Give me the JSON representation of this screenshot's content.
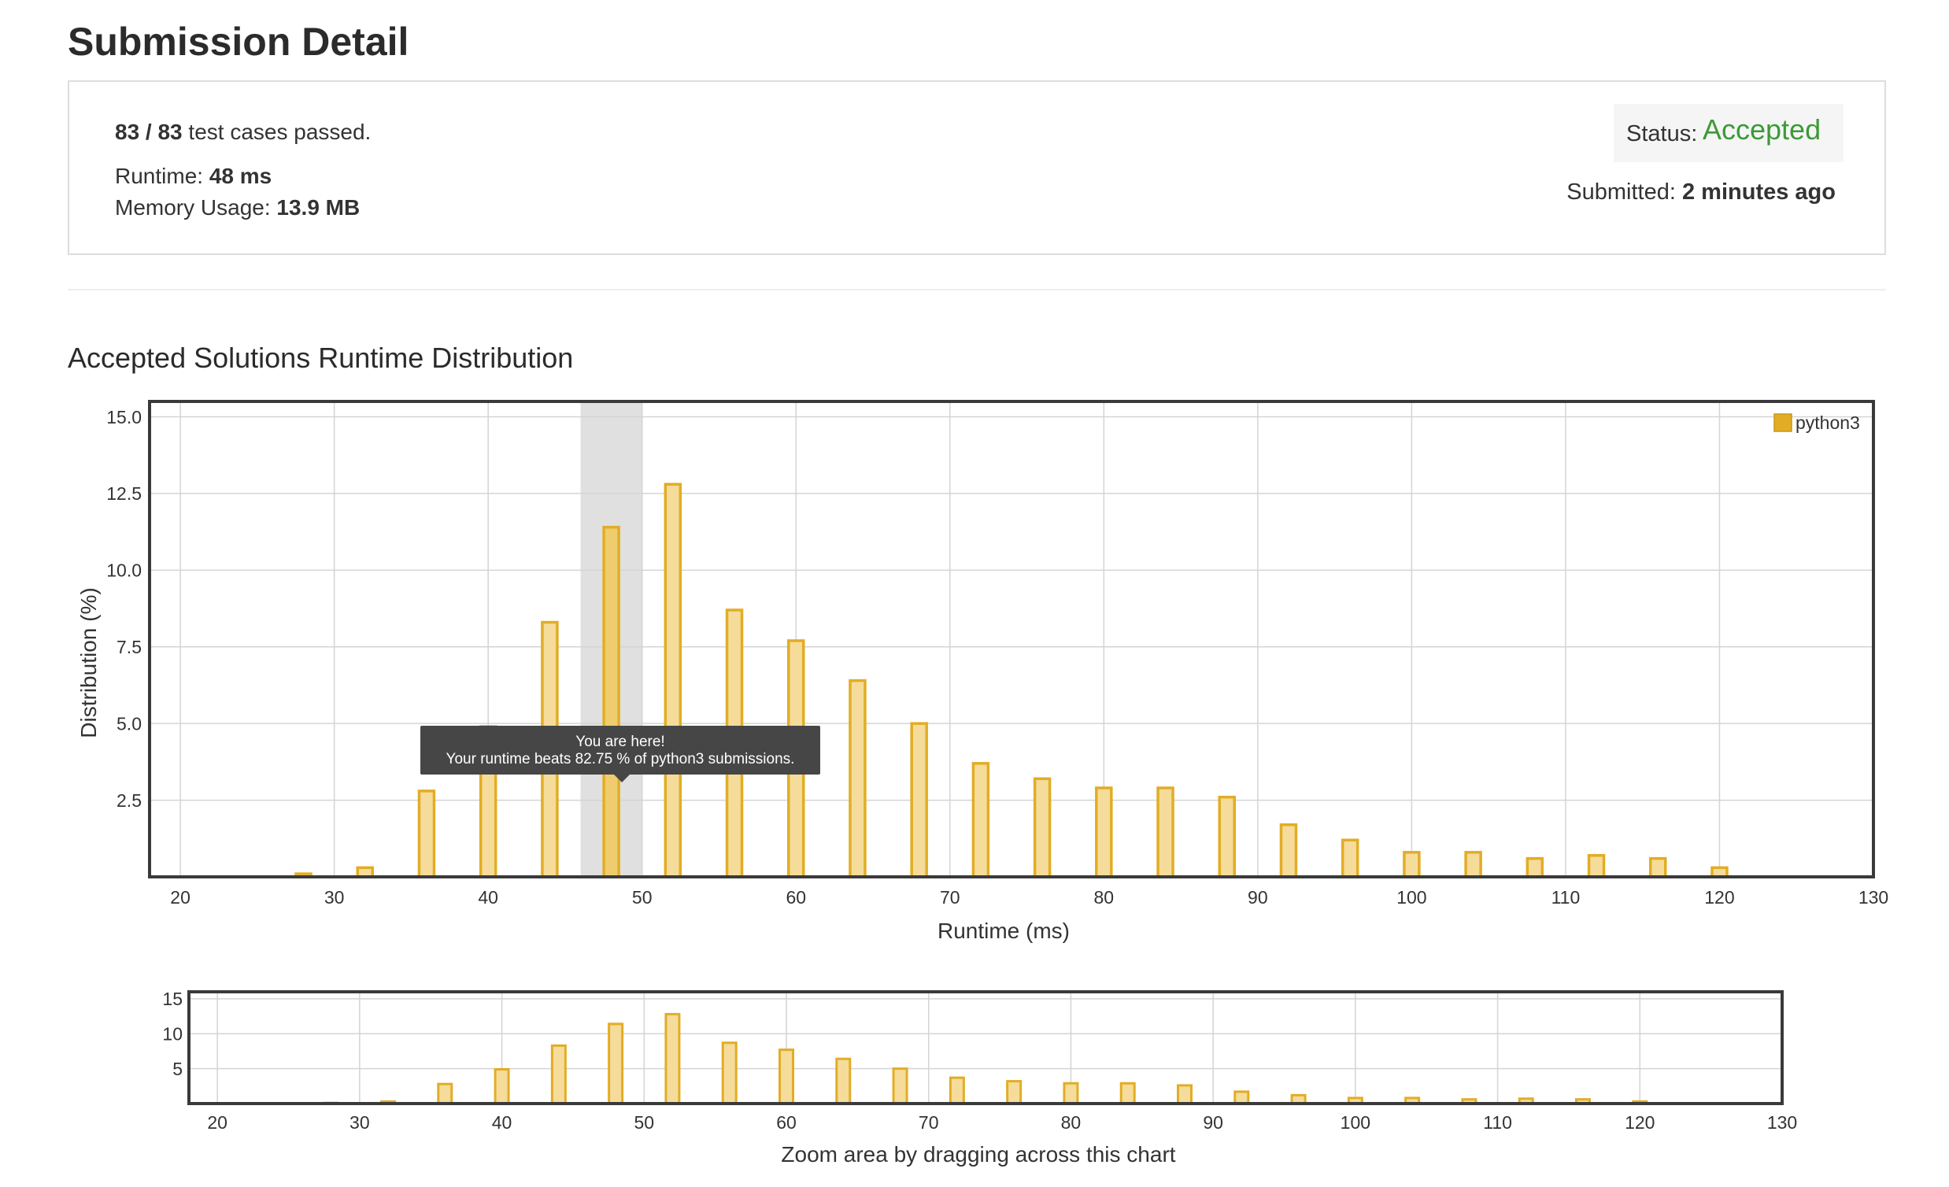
{
  "page": {
    "title": "Submission Detail",
    "tests_passed": "83 / 83",
    "tests_suffix": "test cases passed.",
    "runtime_label": "Runtime:",
    "runtime_value": "48 ms",
    "memory_label": "Memory Usage:",
    "memory_value": "13.9 MB",
    "status_label": "Status:",
    "status_value": "Accepted",
    "submitted_label": "Submitted:",
    "submitted_value": "2 minutes ago",
    "section_title": "Accepted Solutions Runtime Distribution",
    "tooltip_line1": "You are here!",
    "tooltip_line2": "Your runtime beats 82.75 % of python3 submissions.",
    "zoom_hint": "Zoom area by dragging across this chart"
  },
  "colors": {
    "bar_fill": "#f5dc9b",
    "bar_stroke": "#e2ad25",
    "highlight_fill": "#efcd6e",
    "highlight_band": "#e0e0e0",
    "accepted": "#3c9a37",
    "tooltip_bg": "#464646",
    "grid": "#d4d4d4",
    "frame": "#3a3a3a"
  },
  "chart_data": [
    {
      "type": "bar",
      "xlabel": "Runtime (ms)",
      "ylabel": "Distribution (%)",
      "xlim": [
        18,
        130
      ],
      "ylim": [
        0,
        15.5
      ],
      "xticks": [
        20,
        30,
        40,
        50,
        60,
        70,
        80,
        90,
        100,
        110,
        120,
        130
      ],
      "yticks": [
        2.5,
        5.0,
        7.5,
        10.0,
        12.5,
        15.0
      ],
      "ytick_labels": [
        "2.5",
        "5.0",
        "7.5",
        "10.0",
        "12.5",
        "15.0"
      ],
      "grid": true,
      "legend_position": "top-right",
      "highlight_band": [
        46,
        50
      ],
      "highlight_x": 48,
      "series": [
        {
          "name": "python3",
          "x": [
            28,
            32,
            36,
            40,
            44,
            48,
            52,
            56,
            60,
            64,
            68,
            72,
            76,
            80,
            84,
            88,
            92,
            96,
            100,
            104,
            108,
            112,
            116,
            120
          ],
          "values": [
            0.1,
            0.3,
            2.8,
            4.9,
            8.3,
            11.4,
            12.8,
            8.7,
            7.7,
            6.4,
            5.0,
            3.7,
            3.2,
            2.9,
            2.9,
            2.6,
            1.7,
            1.2,
            0.8,
            0.8,
            0.6,
            0.7,
            0.6,
            0.3
          ]
        }
      ]
    },
    {
      "type": "bar",
      "xlim": [
        18,
        130
      ],
      "ylim": [
        0,
        16
      ],
      "xticks": [
        20,
        30,
        40,
        50,
        60,
        70,
        80,
        90,
        100,
        110,
        120,
        130
      ],
      "yticks": [
        5,
        10,
        15
      ],
      "ytick_labels": [
        "5",
        "10",
        "15"
      ],
      "grid": true,
      "series": [
        {
          "x": [
            28,
            32,
            36,
            40,
            44,
            48,
            52,
            56,
            60,
            64,
            68,
            72,
            76,
            80,
            84,
            88,
            92,
            96,
            100,
            104,
            108,
            112,
            116,
            120
          ],
          "values": [
            0.1,
            0.3,
            2.8,
            4.9,
            8.3,
            11.4,
            12.8,
            8.7,
            7.7,
            6.4,
            5.0,
            3.7,
            3.2,
            2.9,
            2.9,
            2.6,
            1.7,
            1.2,
            0.8,
            0.8,
            0.6,
            0.7,
            0.6,
            0.3
          ]
        }
      ]
    }
  ]
}
